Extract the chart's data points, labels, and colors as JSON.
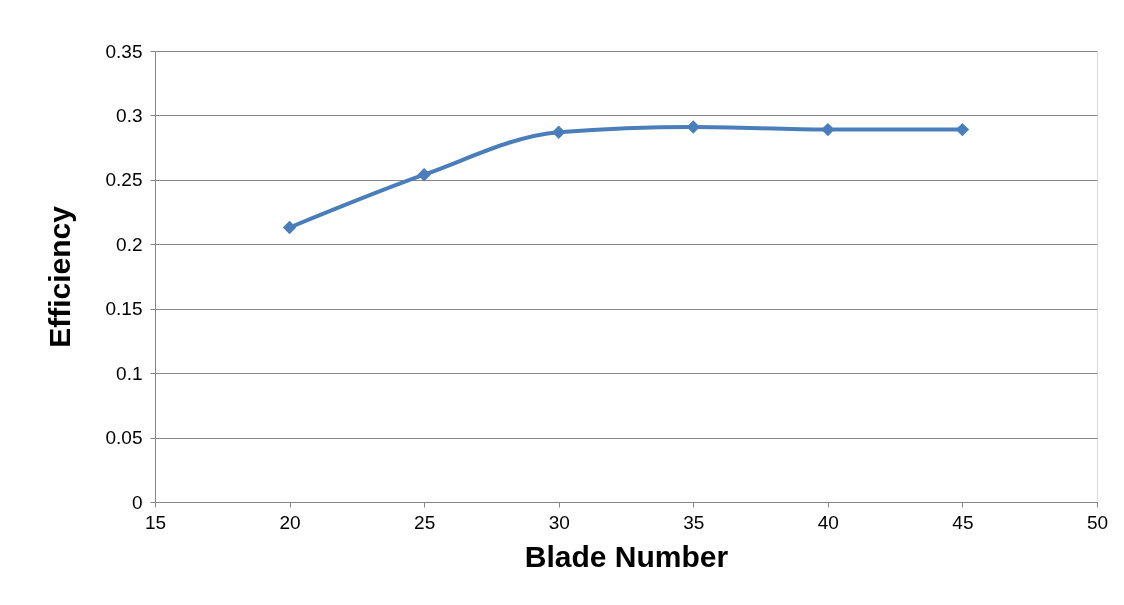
{
  "chart_data": {
    "type": "line",
    "xlabel": "Blade Number",
    "ylabel": "Efficiency",
    "x": [
      20,
      25,
      30,
      35,
      40,
      45
    ],
    "series": [
      {
        "color": "#4a7ebb",
        "values": [
          0.213,
          0.254,
          0.287,
          0.291,
          0.289,
          0.289
        ]
      }
    ],
    "xlim": [
      15,
      50
    ],
    "xticks": [
      15,
      20,
      25,
      30,
      35,
      40,
      45,
      50
    ],
    "ylim": [
      0,
      0.35
    ],
    "yticks": [
      0,
      0.05,
      0.1,
      0.15,
      0.2,
      0.25,
      0.3,
      0.35
    ],
    "grid": "y",
    "marker": "diamond",
    "line_style": "solid"
  }
}
